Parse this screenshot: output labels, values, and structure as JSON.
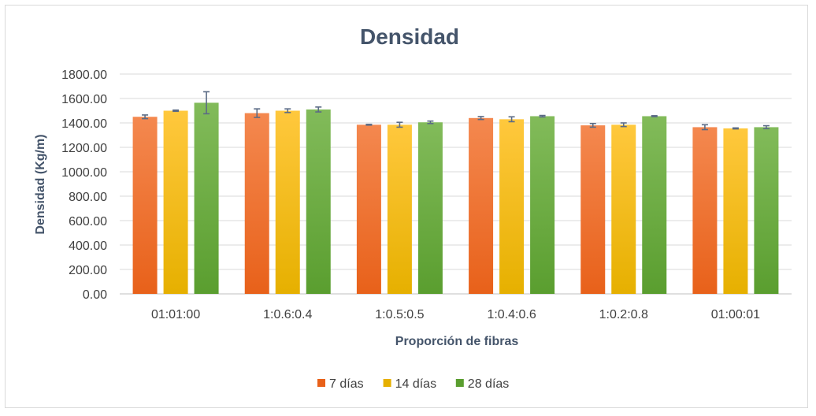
{
  "chart_data": {
    "type": "bar",
    "title": "Densidad",
    "xlabel": "Proporción de fibras",
    "ylabel": "Densidad (Kg/m)",
    "ylim": [
      0,
      1800
    ],
    "yticks": [
      "0.00",
      "200.00",
      "400.00",
      "600.00",
      "800.00",
      "1000.00",
      "1200.00",
      "1400.00",
      "1600.00",
      "1800.00"
    ],
    "grid": true,
    "legend_position": "bottom",
    "categories": [
      "01:01:00",
      "1:0.6:0.4",
      "1:0.5:0.5",
      "1:0.4:0.6",
      "1:0.2:0.8",
      "01:00:01"
    ],
    "series": [
      {
        "name": "7 días",
        "values": [
          1450,
          1480,
          1385,
          1440,
          1380,
          1365
        ],
        "error": [
          15,
          35,
          3,
          12,
          15,
          20
        ],
        "color_top": "#f4884f",
        "color_bottom": "#e8611a"
      },
      {
        "name": "14 días",
        "values": [
          1500,
          1500,
          1385,
          1430,
          1385,
          1355
        ],
        "error": [
          5,
          15,
          20,
          20,
          15,
          4
        ],
        "color_top": "#ffc83d",
        "color_bottom": "#e6b000"
      },
      {
        "name": "28 días",
        "values": [
          1565,
          1510,
          1405,
          1455,
          1455,
          1365
        ],
        "error": [
          90,
          20,
          10,
          6,
          4,
          12
        ],
        "color_top": "#82bb5a",
        "color_bottom": "#5a9e2f"
      }
    ]
  }
}
